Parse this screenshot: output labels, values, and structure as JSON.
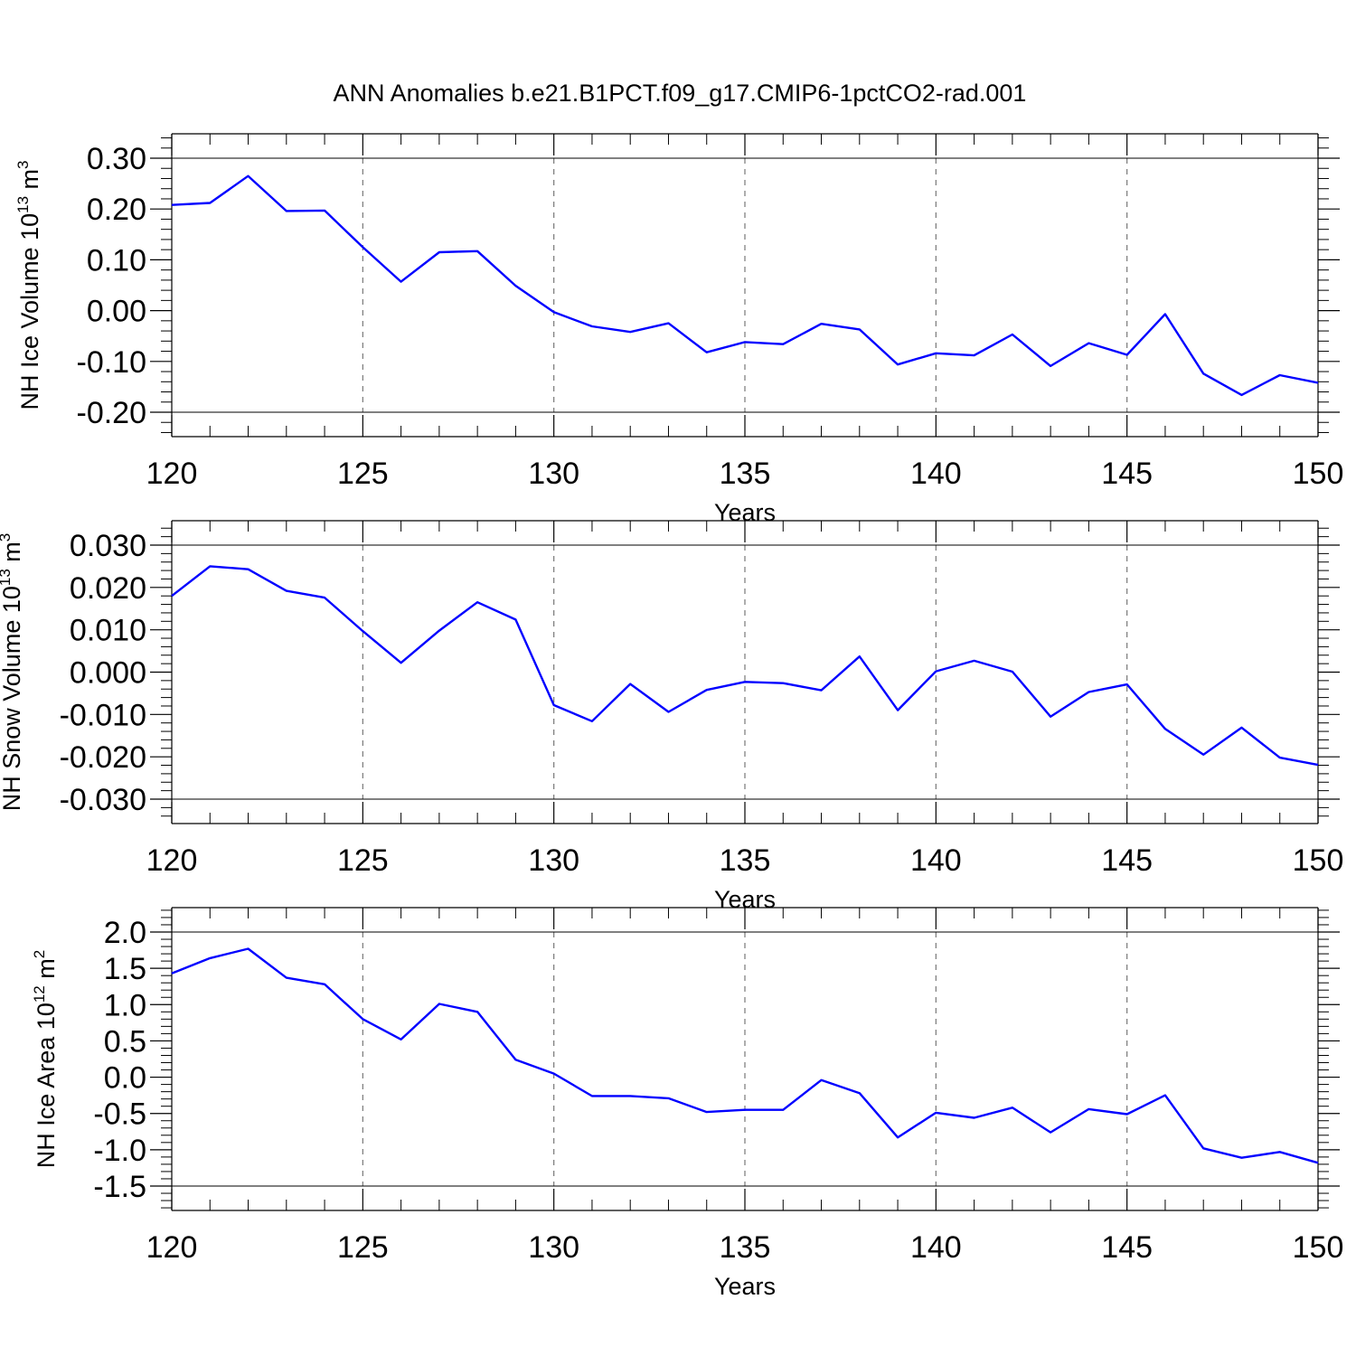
{
  "title": "ANN Anomalies b.e21.B1PCT.f09_g17.CMIP6-1pctCO2-rad.001",
  "colors": {
    "series": "#0000ff",
    "frame": "#000000",
    "grid": "#777777"
  },
  "chart_data": [
    {
      "type": "line",
      "xlabel": "Years",
      "ylabel": {
        "main": "NH Ice Volume 10",
        "sup1": "13",
        "mid": " m",
        "sup2": "3"
      },
      "xlim": [
        120,
        150
      ],
      "ylim": [
        -0.2,
        0.3
      ],
      "xticks": [
        120,
        125,
        130,
        135,
        140,
        145,
        150
      ],
      "xtick_labels": [
        "120",
        "125",
        "130",
        "135",
        "140",
        "145",
        "150"
      ],
      "yticks": [
        0.3,
        0.2,
        0.1,
        0.0,
        -0.1,
        -0.2
      ],
      "ytick_labels": [
        "0.30",
        "0.20",
        "0.10",
        "0.00",
        "-0.10",
        "-0.20"
      ],
      "grid": "x dashed",
      "series": [
        {
          "x": [
            120,
            121,
            122,
            123,
            124,
            125,
            126,
            127,
            128,
            129,
            130,
            131,
            132,
            133,
            134,
            135,
            136,
            137,
            138,
            139,
            140,
            141,
            142,
            143,
            144,
            145,
            146,
            147,
            148,
            149,
            150
          ],
          "values": [
            0.208,
            0.212,
            0.265,
            0.196,
            0.197,
            0.125,
            0.057,
            0.115,
            0.117,
            0.049,
            -0.003,
            -0.031,
            -0.042,
            -0.025,
            -0.082,
            -0.062,
            -0.066,
            -0.026,
            -0.037,
            -0.106,
            -0.084,
            -0.088,
            -0.047,
            -0.109,
            -0.064,
            -0.087,
            -0.007,
            -0.124,
            -0.166,
            -0.127,
            -0.142
          ]
        }
      ]
    },
    {
      "type": "line",
      "xlabel": "Years",
      "ylabel": {
        "main": "NH Snow Volume 10",
        "sup1": "13",
        "mid": " m",
        "sup2": "3"
      },
      "xlim": [
        120,
        150
      ],
      "ylim": [
        -0.03,
        0.03
      ],
      "xticks": [
        120,
        125,
        130,
        135,
        140,
        145,
        150
      ],
      "xtick_labels": [
        "120",
        "125",
        "130",
        "135",
        "140",
        "145",
        "150"
      ],
      "yticks": [
        0.03,
        0.02,
        0.01,
        0.0,
        -0.01,
        -0.02,
        -0.03
      ],
      "ytick_labels": [
        "0.030",
        "0.020",
        "0.010",
        "0.000",
        "-0.010",
        "-0.020",
        "-0.030"
      ],
      "grid": "x dashed",
      "series": [
        {
          "x": [
            120,
            121,
            122,
            123,
            124,
            125,
            126,
            127,
            128,
            129,
            130,
            131,
            132,
            133,
            134,
            135,
            136,
            137,
            138,
            139,
            140,
            141,
            142,
            143,
            144,
            145,
            146,
            147,
            148,
            149,
            150
          ],
          "values": [
            0.018,
            0.025,
            0.0243,
            0.0192,
            0.0176,
            0.0097,
            0.0022,
            0.0098,
            0.0165,
            0.0124,
            -0.0078,
            -0.0116,
            -0.0028,
            -0.0094,
            -0.0042,
            -0.0023,
            -0.0026,
            -0.0043,
            0.0037,
            -0.009,
            0.0002,
            0.0027,
            0.0001,
            -0.0105,
            -0.0047,
            -0.0029,
            -0.0134,
            -0.0195,
            -0.0131,
            -0.0202,
            -0.0219
          ]
        }
      ]
    },
    {
      "type": "line",
      "xlabel": "Years",
      "ylabel": {
        "main": "NH Ice Area 10",
        "sup1": "12",
        "mid": " m",
        "sup2": "2"
      },
      "xlim": [
        120,
        150
      ],
      "ylim": [
        -1.5,
        2.0
      ],
      "xticks": [
        120,
        125,
        130,
        135,
        140,
        145,
        150
      ],
      "xtick_labels": [
        "120",
        "125",
        "130",
        "135",
        "140",
        "145",
        "150"
      ],
      "yticks": [
        2.0,
        1.5,
        1.0,
        0.5,
        0.0,
        -0.5,
        -1.0,
        -1.5
      ],
      "ytick_labels": [
        "2.0",
        "1.5",
        "1.0",
        "0.5",
        "0.0",
        "-0.5",
        "-1.0",
        "-1.5"
      ],
      "grid": "x dashed",
      "series": [
        {
          "x": [
            120,
            121,
            122,
            123,
            124,
            125,
            126,
            127,
            128,
            129,
            130,
            131,
            132,
            133,
            134,
            135,
            136,
            137,
            138,
            139,
            140,
            141,
            142,
            143,
            144,
            145,
            146,
            147,
            148,
            149,
            150
          ],
          "values": [
            1.43,
            1.64,
            1.77,
            1.37,
            1.28,
            0.8,
            0.52,
            1.01,
            0.9,
            0.24,
            0.05,
            -0.26,
            -0.26,
            -0.29,
            -0.48,
            -0.45,
            -0.45,
            -0.04,
            -0.22,
            -0.83,
            -0.49,
            -0.56,
            -0.42,
            -0.76,
            -0.44,
            -0.51,
            -0.25,
            -0.98,
            -1.11,
            -1.03,
            -1.18
          ]
        }
      ]
    }
  ]
}
